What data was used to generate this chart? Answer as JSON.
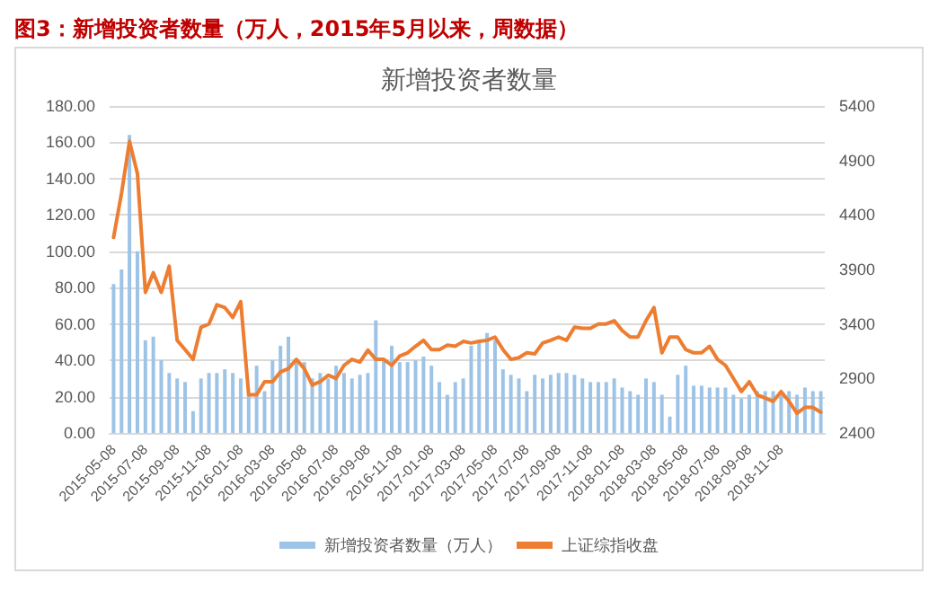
{
  "chart_data": {
    "type": "bar",
    "title": "图3：新增投资者数量（万人，2015年5月以来，周数据）",
    "subtitle": "新增投资者数量",
    "categories": [
      "2015-05-08",
      null,
      null,
      null,
      "2015-07-08",
      null,
      null,
      null,
      "2015-09-08",
      null,
      null,
      null,
      "2015-11-08",
      null,
      null,
      null,
      "2016-01-08",
      null,
      null,
      null,
      "2016-03-08",
      null,
      null,
      null,
      "2016-05-08",
      null,
      null,
      null,
      "2016-07-08",
      null,
      null,
      null,
      "2016-09-08",
      null,
      null,
      null,
      "2016-11-08",
      null,
      null,
      null,
      "2017-01-08",
      null,
      null,
      null,
      "2017-03-08",
      null,
      null,
      null,
      "2017-05-08",
      null,
      null,
      null,
      "2017-07-08",
      null,
      null,
      null,
      "2017-09-08",
      null,
      null,
      null,
      "2017-11-08",
      null,
      null,
      null,
      "2018-01-08",
      null,
      null,
      null,
      "2018-03-08",
      null,
      null,
      null,
      "2018-05-08",
      null,
      null,
      null,
      "2018-07-08",
      null,
      null,
      null,
      "2018-09-08",
      null,
      null,
      null,
      "2018-11-08",
      null,
      null,
      null,
      null,
      null
    ],
    "series": [
      {
        "name": "新增投资者数量（万人）",
        "color": "#9dc3e6",
        "values": [
          82,
          90,
          164,
          100,
          51,
          53,
          40,
          33,
          30,
          28,
          12,
          30,
          33,
          33,
          35,
          33,
          30,
          21,
          37,
          23,
          40,
          48,
          53,
          40,
          39,
          30,
          33,
          30,
          37,
          33,
          30,
          32,
          33,
          62,
          40,
          48,
          39,
          39,
          40,
          42,
          37,
          28,
          21,
          28,
          30,
          48,
          51,
          55,
          51,
          35,
          32,
          30,
          23,
          32,
          30,
          32,
          33,
          33,
          32,
          30,
          28,
          28,
          28,
          30,
          25,
          23,
          21,
          30,
          28,
          21,
          9,
          32,
          37,
          26,
          26,
          25,
          25,
          25,
          21,
          19,
          21,
          23,
          23,
          23,
          21,
          23,
          21,
          25,
          23,
          23
        ]
      },
      {
        "name": "上证综指收盘",
        "type": "line",
        "axis": "y2",
        "color": "#ed7d31",
        "values": [
          4194,
          4600,
          5075,
          4780,
          3690,
          3870,
          3690,
          3930,
          3250,
          3165,
          3075,
          3370,
          3400,
          3576,
          3550,
          3460,
          3605,
          2750,
          2750,
          2870,
          2870,
          2960,
          2990,
          3075,
          2990,
          2840,
          2870,
          2930,
          2900,
          3020,
          3075,
          3050,
          3160,
          3075,
          3075,
          3020,
          3105,
          3135,
          3195,
          3250,
          3165,
          3165,
          3205,
          3195,
          3240,
          3225,
          3240,
          3250,
          3280,
          3165,
          3075,
          3090,
          3135,
          3125,
          3225,
          3250,
          3280,
          3250,
          3370,
          3360,
          3360,
          3400,
          3400,
          3430,
          3340,
          3280,
          3280,
          3430,
          3550,
          3135,
          3280,
          3280,
          3165,
          3135,
          3135,
          3195,
          3075,
          3020,
          2900,
          2780,
          2870,
          2750,
          2720,
          2690,
          2780,
          2690,
          2580,
          2635,
          2635,
          2590
        ]
      }
    ],
    "ylim": [
      0,
      180
    ],
    "yticks": [
      {
        "value": 0,
        "label": "0.00"
      },
      {
        "value": 20,
        "label": "20.00"
      },
      {
        "value": 40,
        "label": "40.00"
      },
      {
        "value": 60,
        "label": "60.00"
      },
      {
        "value": 80,
        "label": "80.00"
      },
      {
        "value": 100,
        "label": "100.00"
      },
      {
        "value": 120,
        "label": "120.00"
      },
      {
        "value": 140,
        "label": "140.00"
      },
      {
        "value": 160,
        "label": "160.00"
      },
      {
        "value": 180,
        "label": "180.00"
      }
    ],
    "y2lim": [
      2400,
      5400
    ],
    "y2ticks": [
      2400,
      2900,
      3400,
      3900,
      4400,
      4900,
      5400
    ],
    "grid": "y",
    "legend": "bottom",
    "marker": "none",
    "line_style": "solid"
  }
}
